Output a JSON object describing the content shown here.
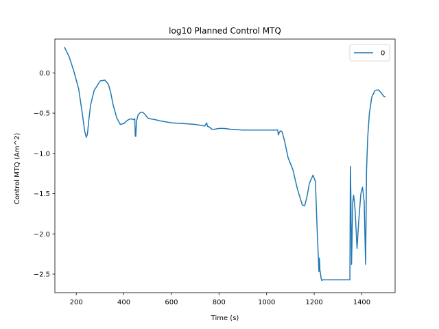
{
  "chart_data": {
    "type": "line",
    "title": "log10 Planned Control MTQ",
    "xlabel": "Time (s)",
    "ylabel": "Control MTQ (Am^2)",
    "xlim": [
      110,
      1540
    ],
    "ylim": [
      -2.73,
      0.42
    ],
    "xticks": [
      200,
      400,
      600,
      800,
      1000,
      1200,
      1400
    ],
    "yticks": [
      0.0,
      -0.5,
      -1.0,
      -1.5,
      -2.0,
      -2.5
    ],
    "ytick_labels": [
      "0.0",
      "−0.5",
      "−1.0",
      "−1.5",
      "−2.0",
      "−2.5"
    ],
    "grid": false,
    "legend_position": "upper right",
    "series": [
      {
        "name": "0",
        "color": "#1f77b4",
        "x": [
          150,
          170,
          190,
          210,
          225,
          235,
          242,
          247,
          252,
          260,
          275,
          300,
          320,
          335,
          345,
          355,
          370,
          385,
          400,
          410,
          420,
          430,
          440,
          446,
          448,
          450,
          453,
          460,
          470,
          480,
          490,
          500,
          510,
          530,
          560,
          600,
          650,
          700,
          740,
          748,
          751,
          754,
          758,
          770,
          780,
          800,
          820,
          850,
          900,
          950,
          1000,
          1047,
          1049,
          1052,
          1058,
          1065,
          1075,
          1090,
          1110,
          1130,
          1150,
          1160,
          1170,
          1180,
          1195,
          1205,
          1213,
          1220,
          1222,
          1224,
          1227,
          1229,
          1232,
          1236,
          1300,
          1350,
          1352,
          1354,
          1357,
          1360,
          1362,
          1366,
          1372,
          1380,
          1388,
          1396,
          1403,
          1410,
          1416,
          1418,
          1420,
          1425,
          1432,
          1442,
          1455,
          1470,
          1482,
          1492,
          1500
        ],
        "y": [
          0.32,
          0.2,
          0.02,
          -0.2,
          -0.5,
          -0.72,
          -0.8,
          -0.76,
          -0.6,
          -0.4,
          -0.22,
          -0.1,
          -0.09,
          -0.14,
          -0.25,
          -0.4,
          -0.56,
          -0.64,
          -0.63,
          -0.6,
          -0.58,
          -0.57,
          -0.58,
          -0.57,
          -0.78,
          -0.79,
          -0.6,
          -0.52,
          -0.49,
          -0.49,
          -0.52,
          -0.56,
          -0.57,
          -0.58,
          -0.6,
          -0.62,
          -0.63,
          -0.64,
          -0.66,
          -0.62,
          -0.66,
          -0.67,
          -0.67,
          -0.7,
          -0.7,
          -0.69,
          -0.69,
          -0.7,
          -0.71,
          -0.71,
          -0.71,
          -0.71,
          -0.77,
          -0.75,
          -0.72,
          -0.73,
          -0.84,
          -1.05,
          -1.2,
          -1.45,
          -1.64,
          -1.65,
          -1.53,
          -1.37,
          -1.27,
          -1.35,
          -2.0,
          -2.47,
          -2.3,
          -2.45,
          -2.5,
          -2.55,
          -2.58,
          -2.57,
          -2.57,
          -2.57,
          -1.16,
          -1.5,
          -2.38,
          -1.9,
          -1.6,
          -1.52,
          -1.7,
          -2.18,
          -1.8,
          -1.5,
          -1.42,
          -1.6,
          -2.38,
          -1.8,
          -1.2,
          -0.8,
          -0.5,
          -0.3,
          -0.22,
          -0.21,
          -0.25,
          -0.29,
          -0.3
        ]
      }
    ]
  }
}
